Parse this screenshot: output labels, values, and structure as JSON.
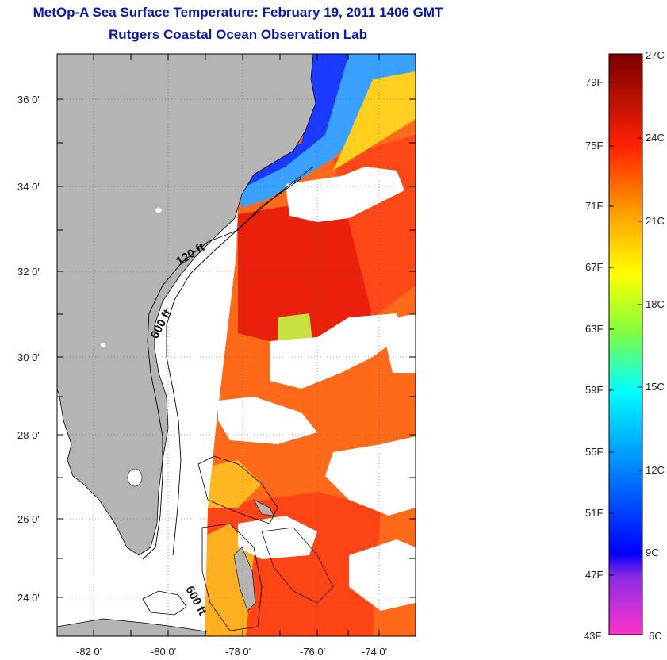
{
  "header": {
    "title": "MetOp-A Sea Surface Temperature:  February 19, 2011 1406 GMT",
    "subtitle": "Rutgers Coastal Ocean Observation Lab"
  },
  "map": {
    "lat_labels": [
      "36 0'",
      "34 0'",
      "32 0'",
      "30 0'",
      "28 0'",
      "26 0'",
      "24 0'"
    ],
    "lon_labels": [
      "-82 0'",
      "-80 0'",
      "-78 0'",
      "-76 0'",
      "-74 0'"
    ],
    "lat_range": [
      23,
      37.2
    ],
    "lon_range": [
      -83,
      -72.9
    ],
    "contour_labels": [
      "120 ft",
      "600 ft",
      "600 ft"
    ],
    "colors": {
      "land": "#b4b4b4",
      "cloud": "#ffffff",
      "warm": "#ff4a1a",
      "hot": "#e81a0a",
      "mid": "#ff8c1a",
      "cool": "#2a8cff",
      "cold": "#1a2aff"
    }
  },
  "colorbar": {
    "fahrenheit_labels": [
      "79F",
      "75F",
      "71F",
      "67F",
      "63F",
      "59F",
      "55F",
      "51F",
      "47F",
      "43F"
    ],
    "celsius_labels": [
      "27C",
      "24C",
      "21C",
      "18C",
      "15C",
      "12C",
      "9C",
      "6C"
    ],
    "range_c": [
      6,
      27
    ]
  }
}
